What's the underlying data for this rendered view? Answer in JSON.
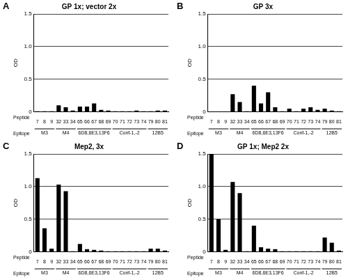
{
  "chart_data": [
    {
      "type": "bar",
      "panel": "A",
      "title": "GP 1x; vector 2x",
      "ylabel": "OD",
      "xlabel": "Peptide",
      "group_label": "Epitope",
      "categories": [
        "7",
        "8",
        "9",
        "32",
        "33",
        "34",
        "65",
        "66",
        "67",
        "68",
        "69",
        "70",
        "71",
        "72",
        "73",
        "74",
        "79",
        "80",
        "81"
      ],
      "values": [
        0.01,
        0.01,
        0.01,
        0.1,
        0.07,
        0.02,
        0.08,
        0.08,
        0.13,
        0.03,
        0.02,
        0.01,
        0.01,
        0.01,
        0.02,
        0.01,
        0.01,
        0.02,
        0.02
      ],
      "color": "#000000",
      "ylim": [
        0,
        1.5
      ],
      "yticks": [
        0,
        0.5,
        {
          "value": 1,
          "label": "1.0"
        },
        1.5
      ],
      "grid": true,
      "groups": [
        {
          "label": "M3",
          "categories": [
            "7",
            "8",
            "9"
          ]
        },
        {
          "label": "M4",
          "categories": [
            "32",
            "33",
            "34"
          ]
        },
        {
          "label": "6D8,6E3,13F6",
          "categories": [
            "65",
            "66",
            "67",
            "68",
            "69"
          ]
        },
        {
          "label": "Conf-1,-2",
          "categories": [
            "70",
            "71",
            "72",
            "73",
            "74"
          ]
        },
        {
          "label": "12B5",
          "categories": [
            "79",
            "80",
            "81"
          ]
        }
      ]
    },
    {
      "type": "bar",
      "panel": "B",
      "title": "GP 3x",
      "ylabel": "OD",
      "xlabel": "Peptide",
      "group_label": "Epitope",
      "categories": [
        "7",
        "8",
        "9",
        "32",
        "33",
        "34",
        "65",
        "66",
        "67",
        "68",
        "69",
        "70",
        "71",
        "72",
        "73",
        "74",
        "79",
        "80",
        "81"
      ],
      "values": [
        0,
        0,
        0,
        0.27,
        0.15,
        0.01,
        0.4,
        0.13,
        0.3,
        0.07,
        0.01,
        0.05,
        0.01,
        0.05,
        0.07,
        0.03,
        0.05,
        0.02,
        0.01
      ],
      "color": "#000000",
      "ylim": [
        0,
        1.5
      ],
      "yticks": [
        0,
        0.5,
        {
          "value": 1,
          "label": "1.0"
        },
        1.5
      ],
      "grid": true,
      "groups": [
        {
          "label": "M3",
          "categories": [
            "7",
            "8",
            "9"
          ]
        },
        {
          "label": "M4",
          "categories": [
            "32",
            "33",
            "34"
          ]
        },
        {
          "label": "6D8,6E3,13F6",
          "categories": [
            "65",
            "66",
            "67",
            "68",
            "69"
          ]
        },
        {
          "label": "Conf-1,-2",
          "categories": [
            "70",
            "71",
            "72",
            "73",
            "74"
          ]
        },
        {
          "label": "12B5",
          "categories": [
            "79",
            "80",
            "81"
          ]
        }
      ]
    },
    {
      "type": "bar",
      "panel": "C",
      "title": "Mep2, 3x",
      "ylabel": "OD",
      "xlabel": "Peptide",
      "group_label": "Epitope",
      "categories": [
        "7",
        "8",
        "9",
        "32",
        "33",
        "34",
        "65",
        "66",
        "67",
        "68",
        "69",
        "70",
        "71",
        "72",
        "73",
        "74",
        "79",
        "80",
        "81"
      ],
      "values": [
        1.13,
        0.36,
        0.05,
        1.03,
        0.93,
        0.01,
        0.12,
        0.04,
        0.03,
        0.02,
        0.01,
        0.01,
        0.01,
        0.01,
        0.01,
        0.01,
        0.05,
        0.05,
        0.02
      ],
      "color": "#000000",
      "ylim": [
        0,
        1.5
      ],
      "yticks": [
        0,
        0.5,
        {
          "value": 1,
          "label": "1.0"
        },
        1.5
      ],
      "grid": true,
      "groups": [
        {
          "label": "M3",
          "categories": [
            "7",
            "8",
            "9"
          ]
        },
        {
          "label": "M4",
          "categories": [
            "32",
            "33",
            "34"
          ]
        },
        {
          "label": "6D8,6E3,13F6",
          "categories": [
            "65",
            "66",
            "67",
            "68",
            "69"
          ]
        },
        {
          "label": "Conf-1,-2",
          "categories": [
            "70",
            "71",
            "72",
            "73",
            "74"
          ]
        },
        {
          "label": "12B5",
          "categories": [
            "79",
            "80",
            "81"
          ]
        }
      ]
    },
    {
      "type": "bar",
      "panel": "D",
      "title": "GP 1x; Mep2 2x",
      "ylabel": "OD",
      "xlabel": "Peptide",
      "group_label": "Epitope",
      "categories": [
        "7",
        "8",
        "9",
        "32",
        "33",
        "34",
        "65",
        "66",
        "67",
        "68",
        "69",
        "70",
        "71",
        "72",
        "73",
        "74",
        "79",
        "80",
        "81"
      ],
      "values": [
        1.5,
        0.5,
        0.03,
        1.07,
        0.9,
        0.01,
        0.4,
        0.07,
        0.05,
        0.04,
        0.01,
        0.01,
        0.01,
        0.01,
        0.01,
        0.01,
        0.22,
        0.14,
        0.02
      ],
      "color": "#000000",
      "ylim": [
        0,
        1.5
      ],
      "yticks": [
        0,
        0.5,
        {
          "value": 1,
          "label": "1.0"
        },
        1.5
      ],
      "grid": true,
      "groups": [
        {
          "label": "M3",
          "categories": [
            "7",
            "8",
            "9"
          ]
        },
        {
          "label": "M4",
          "categories": [
            "32",
            "33",
            "34"
          ]
        },
        {
          "label": "6D8,6E3,13F6",
          "categories": [
            "65",
            "66",
            "67",
            "68",
            "69"
          ]
        },
        {
          "label": "Conf-1,-2",
          "categories": [
            "70",
            "71",
            "72",
            "73",
            "74"
          ]
        },
        {
          "label": "12B5",
          "categories": [
            "79",
            "80",
            "81"
          ]
        }
      ]
    }
  ]
}
